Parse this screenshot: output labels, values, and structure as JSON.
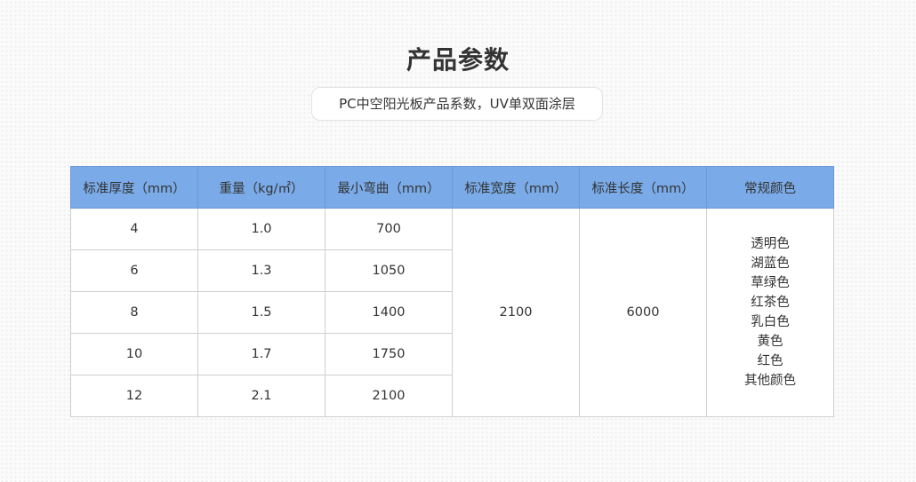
{
  "title": "产品参数",
  "subtitle": "PC中空阳光板产品系数，UV单双面涂层",
  "table": {
    "headers": [
      "标准厚度（mm）",
      "重量（kg/㎡）",
      "最小弯曲（mm）",
      "标准宽度（mm）",
      "标准长度（mm）",
      "常规颜色"
    ],
    "rows": [
      [
        "4",
        "1.0",
        "700"
      ],
      [
        "6",
        "1.3",
        "1050"
      ],
      [
        "8",
        "1.5",
        "1400"
      ],
      [
        "10",
        "1.7",
        "1750"
      ],
      [
        "12",
        "2.1",
        "2100"
      ]
    ],
    "width": "2100",
    "length": "6000",
    "colors": [
      "透明色",
      "湖蓝色",
      "草绿色",
      "红茶色",
      "乳白色",
      "黄色",
      "红色",
      "其他颜色"
    ]
  },
  "colors": {
    "header_bg": "#7aabe8"
  }
}
